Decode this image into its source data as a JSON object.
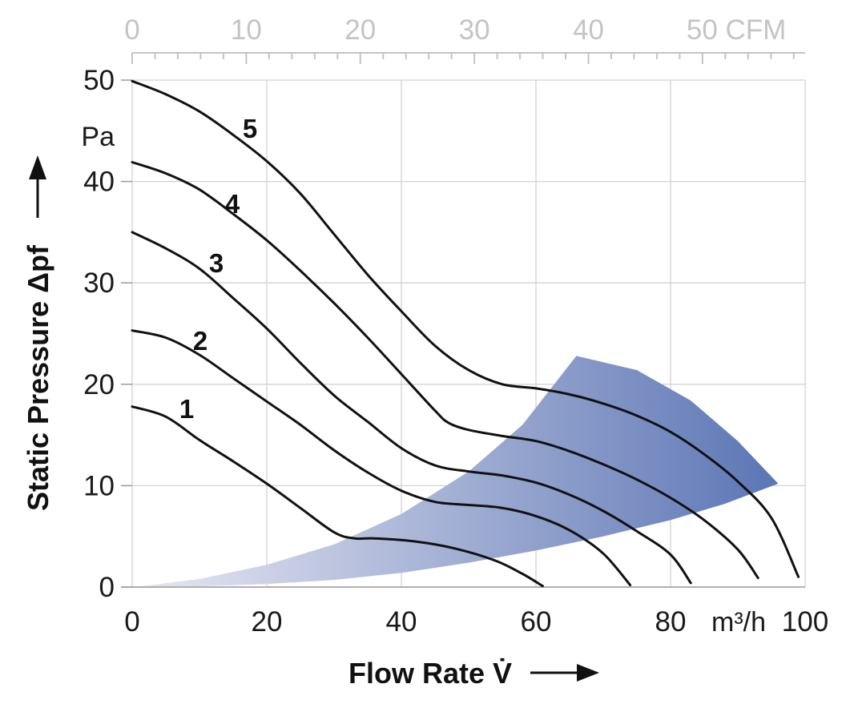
{
  "chart_data": {
    "type": "line",
    "xlabel": "Flow Rate V̇",
    "ylabel": "Static Pressure Δpf",
    "x_unit": "m³/h",
    "y_unit": "Pa",
    "secondary_x_unit": "CFM",
    "xlim": [
      0,
      100
    ],
    "ylim": [
      0,
      50
    ],
    "secondary_xlim": [
      0,
      59
    ],
    "x_ticks": [
      "0",
      "20",
      "40",
      "60",
      "80",
      "100"
    ],
    "y_ticks": [
      "0",
      "10",
      "20",
      "30",
      "40",
      "50"
    ],
    "secondary_x_ticks": [
      "0",
      "10",
      "20",
      "30",
      "40",
      "50 CFM"
    ],
    "grid": true,
    "series": [
      {
        "name": "1",
        "points": [
          [
            0,
            17.8
          ],
          [
            5,
            16.8
          ],
          [
            10,
            14.5
          ],
          [
            15,
            12.4
          ],
          [
            20,
            10.2
          ],
          [
            25,
            7.8
          ],
          [
            30,
            5.4
          ],
          [
            33,
            4.8
          ],
          [
            36,
            4.8
          ],
          [
            42,
            4.5
          ],
          [
            48,
            3.8
          ],
          [
            54,
            2.6
          ],
          [
            58,
            1.3
          ],
          [
            61,
            0.1
          ]
        ]
      },
      {
        "name": "2",
        "points": [
          [
            0,
            25.3
          ],
          [
            5,
            24.6
          ],
          [
            10,
            22.9
          ],
          [
            15,
            20.6
          ],
          [
            20,
            18.3
          ],
          [
            25,
            16.0
          ],
          [
            30,
            13.5
          ],
          [
            35,
            11.3
          ],
          [
            40,
            9.5
          ],
          [
            45,
            8.4
          ],
          [
            50,
            8.1
          ],
          [
            55,
            7.8
          ],
          [
            60,
            7.0
          ],
          [
            65,
            5.6
          ],
          [
            70,
            3.3
          ],
          [
            74,
            0.2
          ]
        ]
      },
      {
        "name": "3",
        "points": [
          [
            0,
            35.0
          ],
          [
            5,
            33.4
          ],
          [
            10,
            31.4
          ],
          [
            15,
            28.5
          ],
          [
            20,
            25.5
          ],
          [
            25,
            22.1
          ],
          [
            30,
            18.9
          ],
          [
            35,
            16.3
          ],
          [
            40,
            13.7
          ],
          [
            45,
            12.0
          ],
          [
            50,
            11.4
          ],
          [
            55,
            11.0
          ],
          [
            60,
            10.3
          ],
          [
            65,
            9.1
          ],
          [
            70,
            7.5
          ],
          [
            75,
            5.5
          ],
          [
            80,
            3.2
          ],
          [
            83,
            0.4
          ]
        ]
      },
      {
        "name": "4",
        "points": [
          [
            0,
            41.9
          ],
          [
            5,
            40.8
          ],
          [
            10,
            39.2
          ],
          [
            15,
            36.8
          ],
          [
            20,
            34.2
          ],
          [
            25,
            31.2
          ],
          [
            30,
            28.0
          ],
          [
            35,
            24.6
          ],
          [
            40,
            21.0
          ],
          [
            45,
            17.4
          ],
          [
            47,
            16.2
          ],
          [
            50,
            15.5
          ],
          [
            55,
            14.9
          ],
          [
            60,
            14.4
          ],
          [
            65,
            13.4
          ],
          [
            70,
            12.1
          ],
          [
            75,
            10.6
          ],
          [
            80,
            8.8
          ],
          [
            85,
            6.6
          ],
          [
            90,
            3.7
          ],
          [
            93,
            0.9
          ]
        ]
      },
      {
        "name": "5",
        "points": [
          [
            0,
            49.9
          ],
          [
            5,
            48.6
          ],
          [
            10,
            46.9
          ],
          [
            15,
            44.6
          ],
          [
            20,
            42.0
          ],
          [
            25,
            38.8
          ],
          [
            30,
            34.8
          ],
          [
            35,
            30.8
          ],
          [
            40,
            27.2
          ],
          [
            45,
            23.8
          ],
          [
            50,
            21.4
          ],
          [
            55,
            20.0
          ],
          [
            60,
            19.6
          ],
          [
            65,
            19.0
          ],
          [
            70,
            18.1
          ],
          [
            75,
            16.9
          ],
          [
            80,
            15.3
          ],
          [
            85,
            13.1
          ],
          [
            90,
            10.4
          ],
          [
            95,
            6.8
          ],
          [
            99,
            1.0
          ]
        ]
      }
    ],
    "operating_range": {
      "color_start": "#e8e8f2",
      "color_end": "#5a74b4",
      "upper_edge": [
        [
          1,
          0.05
        ],
        [
          10,
          0.8
        ],
        [
          20,
          2.2
        ],
        [
          30,
          4.2
        ],
        [
          40,
          7.2
        ],
        [
          50,
          11.4
        ],
        [
          58,
          16.0
        ],
        [
          66,
          22.8
        ]
      ],
      "outer_arc": [
        [
          66,
          22.8
        ],
        [
          75,
          21.4
        ],
        [
          83,
          18.4
        ],
        [
          90,
          14.4
        ],
        [
          96,
          10.2
        ]
      ],
      "lower_edge": [
        [
          96,
          10.2
        ],
        [
          88,
          8.2
        ],
        [
          80,
          6.6
        ],
        [
          70,
          5.0
        ],
        [
          60,
          3.6
        ],
        [
          50,
          2.4
        ],
        [
          40,
          1.4
        ],
        [
          30,
          0.7
        ],
        [
          20,
          0.3
        ],
        [
          10,
          0.08
        ],
        [
          1,
          0.0
        ]
      ]
    }
  }
}
